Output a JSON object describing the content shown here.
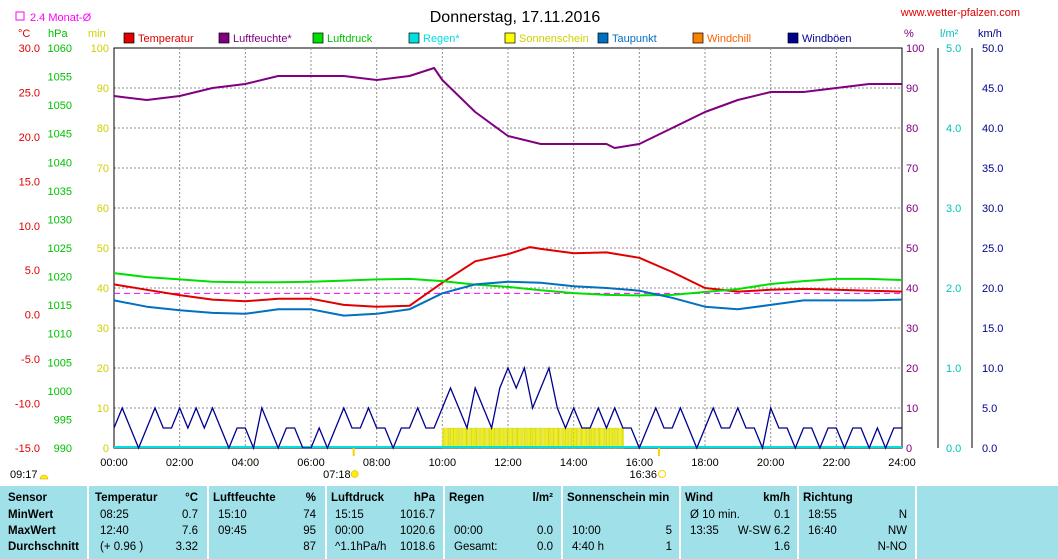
{
  "title": "Donnerstag, 17.11.2016",
  "website": "www.wetter-pfalzen.com",
  "avg_label": "2.4 Monat-Ø",
  "colors": {
    "temperatur": "#e00000",
    "luftfeuchte": "#800080",
    "luftdruck": "#00e000",
    "regen": "#00e0e0",
    "sonnenschein": "#ffff00",
    "taupunkt": "#0070c0",
    "windchill": "#ff8000",
    "windboeen": "#000090",
    "avg": "#ff00ff"
  },
  "axis_units": {
    "c": "°C",
    "hpa": "hPa",
    "min": "min",
    "pct": "%",
    "lm2": "l/m²",
    "kmh": "km/h"
  },
  "sunrise": "07:18",
  "sunset": "16:36",
  "left_time": "09:17",
  "chart_data": {
    "type": "line",
    "title": "Donnerstag, 17.11.2016",
    "x_ticks": [
      "00:00",
      "02:00",
      "04:00",
      "06:00",
      "08:00",
      "10:00",
      "12:00",
      "14:00",
      "16:00",
      "18:00",
      "20:00",
      "22:00",
      "24:00"
    ],
    "y_axes": {
      "temperature_c": {
        "range": [
          -15,
          30
        ],
        "ticks": [
          "30.0",
          "25.0",
          "20.0",
          "15.0",
          "10.0",
          "5.0",
          "0.0",
          "-5.0",
          "-10.0",
          "-15.0"
        ]
      },
      "pressure_hpa": {
        "range": [
          990,
          1060
        ],
        "ticks": [
          "1060",
          "1055",
          "1050",
          "1045",
          "1040",
          "1035",
          "1030",
          "1025",
          "1020",
          "1015",
          "1010",
          "1005",
          "1000",
          "995",
          "990"
        ]
      },
      "sunshine_min": {
        "range": [
          0,
          100
        ],
        "ticks": [
          "100",
          "90",
          "80",
          "70",
          "60",
          "50",
          "40",
          "30",
          "20",
          "10",
          "0"
        ]
      },
      "humidity_pct": {
        "range": [
          0,
          100
        ],
        "ticks": [
          "100",
          "90",
          "80",
          "70",
          "60",
          "50",
          "40",
          "30",
          "20",
          "10",
          "0"
        ]
      },
      "rain_lm2": {
        "range": [
          0,
          5
        ],
        "ticks": [
          "5.0",
          "4.0",
          "3.0",
          "2.0",
          "1.0",
          "0.0"
        ]
      },
      "wind_kmh": {
        "range": [
          0,
          50
        ],
        "ticks": [
          "50.0",
          "45.0",
          "40.0",
          "35.0",
          "30.0",
          "25.0",
          "20.0",
          "15.0",
          "10.0",
          "5.0",
          "0.0"
        ]
      }
    },
    "legend": [
      "Temperatur",
      "Luftfeuchte*",
      "Luftdruck",
      "Regen*",
      "Sonnenschein",
      "Taupunkt",
      "Windchill",
      "Windböen"
    ],
    "series": [
      {
        "name": "Temperatur",
        "axis": "temperature_c",
        "x": [
          0,
          1,
          2,
          3,
          4,
          5,
          6,
          7,
          8,
          9,
          10,
          11,
          12,
          12.67,
          13,
          14,
          15,
          16,
          17,
          18,
          19,
          20,
          21,
          22,
          23,
          24
        ],
        "values": [
          3.4,
          2.8,
          2.2,
          1.7,
          1.5,
          1.8,
          1.8,
          1.1,
          0.9,
          1.0,
          3.6,
          6.0,
          6.8,
          7.6,
          7.4,
          6.9,
          7.0,
          6.4,
          4.8,
          3.0,
          2.6,
          2.8,
          2.9,
          2.8,
          2.7,
          2.6
        ]
      },
      {
        "name": "Luftfeuchte*",
        "axis": "humidity_pct",
        "x": [
          0,
          1,
          2,
          3,
          4,
          5,
          6,
          7,
          8,
          9,
          9.75,
          10,
          11,
          12,
          13,
          14,
          15,
          15.25,
          16,
          17,
          18,
          19,
          20,
          21,
          22,
          23,
          24
        ],
        "values": [
          88,
          87,
          88,
          90,
          91,
          93,
          93,
          93,
          92,
          93,
          95,
          92,
          84,
          78,
          76,
          76,
          76,
          75,
          76,
          80,
          84,
          87,
          89,
          89,
          90,
          91,
          91
        ]
      },
      {
        "name": "Luftdruck",
        "axis": "pressure_hpa",
        "x": [
          0,
          1,
          2,
          3,
          4,
          5,
          6,
          7,
          8,
          9,
          10,
          11,
          12,
          13,
          14,
          15,
          16,
          17,
          18,
          19,
          20,
          21,
          22,
          23,
          24
        ],
        "values": [
          1020.6,
          1019.9,
          1019.5,
          1019.1,
          1019.0,
          1019.0,
          1019.1,
          1019.3,
          1019.5,
          1019.6,
          1019.2,
          1018.6,
          1018.2,
          1017.6,
          1017.1,
          1016.8,
          1016.7,
          1016.8,
          1017.3,
          1017.8,
          1018.7,
          1019.2,
          1019.6,
          1019.6,
          1019.4
        ]
      },
      {
        "name": "Taupunkt",
        "axis": "temperature_c",
        "x": [
          0,
          1,
          2,
          3,
          4,
          5,
          6,
          7,
          8,
          9,
          10,
          11,
          12,
          13,
          14,
          15,
          16,
          17,
          18,
          19,
          20,
          21,
          22,
          23,
          24
        ],
        "values": [
          1.6,
          0.9,
          0.5,
          0.2,
          0.1,
          0.6,
          0.6,
          -0.1,
          0.1,
          0.6,
          2.4,
          3.4,
          3.7,
          3.6,
          3.2,
          3.0,
          2.7,
          1.9,
          0.9,
          0.6,
          1.1,
          1.6,
          1.6,
          1.6,
          1.7
        ]
      },
      {
        "name": "Windböen",
        "axis": "wind_kmh",
        "x": [
          0,
          0.25,
          0.5,
          0.75,
          1,
          1.25,
          1.5,
          1.75,
          2,
          2.25,
          2.5,
          2.75,
          3,
          3.25,
          3.5,
          3.75,
          4,
          4.25,
          4.5,
          4.75,
          5,
          5.25,
          5.5,
          5.75,
          6,
          6.25,
          6.5,
          6.75,
          7,
          7.25,
          7.5,
          7.75,
          8,
          8.25,
          8.5,
          8.75,
          9,
          9.25,
          9.5,
          9.75,
          10,
          10.25,
          10.5,
          10.75,
          11,
          11.25,
          11.5,
          11.75,
          12,
          12.25,
          12.5,
          12.75,
          13,
          13.25,
          13.5,
          13.75,
          14,
          14.25,
          14.5,
          14.75,
          15,
          15.25,
          15.5,
          15.75,
          16,
          16.25,
          16.5,
          16.75,
          17,
          17.25,
          17.5,
          17.75,
          18,
          18.25,
          18.5,
          18.75,
          19,
          19.25,
          19.5,
          19.75,
          20,
          20.25,
          20.5,
          20.75,
          21,
          21.25,
          21.5,
          21.75,
          22,
          22.25,
          22.5,
          22.75,
          23,
          23.25,
          23.5,
          23.75,
          24
        ],
        "values": [
          2.5,
          5,
          2.5,
          0,
          2.5,
          5,
          2.5,
          2.5,
          5,
          2.5,
          5,
          2.5,
          5,
          2.5,
          0,
          2.5,
          2.5,
          0,
          5,
          2.5,
          0,
          2.5,
          2.5,
          0,
          0,
          2.5,
          0,
          2.5,
          5,
          2.5,
          2.5,
          5,
          2.5,
          2.5,
          0,
          2.5,
          2.5,
          5,
          2.5,
          2.5,
          5,
          7.5,
          5,
          2.5,
          7.5,
          5,
          2.5,
          7.5,
          10,
          7.5,
          10,
          5,
          7.5,
          10,
          5,
          2.5,
          5,
          2.5,
          2.5,
          5,
          2.5,
          5,
          2.5,
          2.5,
          0,
          2.5,
          5,
          2.5,
          2.5,
          5,
          2.5,
          0,
          2.5,
          5,
          2.5,
          2.5,
          5,
          2.5,
          2.5,
          0,
          5,
          2.5,
          2.5,
          0,
          2.5,
          2.5,
          0,
          2.5,
          2.5,
          0,
          2.5,
          2.5,
          0,
          2.5,
          0,
          2.5,
          2.5
        ]
      },
      {
        "name": "Sonnenschein",
        "axis": "sunshine_min",
        "x": [
          10,
          10.25,
          10.5,
          10.75,
          11,
          11.25,
          11.5,
          11.75,
          12,
          12.25,
          12.5,
          12.75,
          13,
          13.25,
          13.5,
          13.75,
          14,
          14.25,
          14.5,
          14.75,
          15,
          15.25
        ],
        "values": [
          5,
          5,
          5,
          5,
          5,
          5,
          5,
          5,
          5,
          5,
          5,
          5,
          5,
          5,
          5,
          5,
          5,
          5,
          5,
          5,
          5,
          5
        ]
      }
    ],
    "monthly_average": {
      "label": "2.4 Monat-Ø",
      "value": 2.4,
      "axis": "temperature_c"
    }
  },
  "table": {
    "headers": {
      "sensor": "Sensor",
      "temperatur": "Temperatur",
      "temp_unit": "°C",
      "luftfeuchte": "Luftfeuchte",
      "feuchte_unit": "%",
      "luftdruck": "Luftdruck",
      "druck_unit": "hPa",
      "regen": "Regen",
      "regen_unit": "l/m²",
      "sonnenschein": "Sonnenschein min",
      "wind": "Wind",
      "wind_unit": "km/h",
      "richtung": "Richtung"
    },
    "rows": [
      {
        "label": "MinWert",
        "temp_time": "08:25",
        "temp_val": "0.7",
        "hum_time": "15:10",
        "hum_val": "74",
        "press_time": "15:15",
        "press_val": "1016.7",
        "rain_time": "",
        "rain_val": "",
        "sun_time": "",
        "sun_val": "",
        "wind_time": "Ø 10 min.",
        "wind_dir": "",
        "wind_val": "0.1",
        "dir_time": "18:55",
        "dir_val": "N"
      },
      {
        "label": "MaxWert",
        "temp_time": "12:40",
        "temp_val": "7.6",
        "hum_time": "09:45",
        "hum_val": "95",
        "press_time": "00:00",
        "press_val": "1020.6",
        "rain_time": "00:00",
        "rain_val": "0.0",
        "sun_time": "10:00",
        "sun_val": "5",
        "wind_time": "13:35",
        "wind_dir": "W-SW",
        "wind_val": "6.2",
        "dir_time": "16:40",
        "dir_val": "NW"
      },
      {
        "label": "Durchschnitt",
        "temp_time": "(+ 0.96 )",
        "temp_val": "3.32",
        "hum_time": "",
        "hum_val": "87",
        "press_time": "^1.1hPa/h",
        "press_val": "1018.6",
        "rain_time": "Gesamt:",
        "rain_val": "0.0",
        "sun_time": "4:40 h",
        "sun_val": "1",
        "wind_time": "",
        "wind_dir": "",
        "wind_val": "1.6",
        "dir_time": "",
        "dir_val": "N-NO"
      }
    ]
  }
}
